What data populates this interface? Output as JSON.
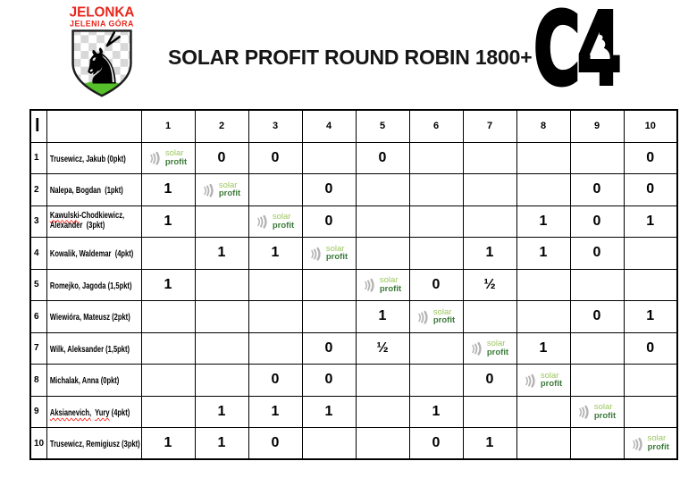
{
  "club_logo": {
    "name_line1": "JELONKA",
    "name_line2": "JELENIA GÓRA",
    "colors": {
      "red": "#e7261c",
      "shield_border": "#1c1c1c",
      "checker": "#d8d8d8",
      "grass": "#55c02a",
      "knight": "#000000"
    },
    "knight_icon": "♞"
  },
  "title": "SOLAR PROFIT ROUND ROBIN 1800+",
  "c4_logo": {
    "text": "C4",
    "piece_icon": "♟"
  },
  "table": {
    "corner_label": "l",
    "round_headers": [
      "1",
      "2",
      "3",
      "4",
      "5",
      "6",
      "7",
      "8",
      "9",
      "10"
    ],
    "solar_logo": {
      "word1": "solar",
      "word2": "profit",
      "word1_color": "#9cc75e",
      "word2_color": "#3b7a39",
      "icon_color": "#b3b3b3"
    },
    "spellcheck_underline_color": "#ff1f13",
    "players": [
      {
        "no": "1",
        "name_lines": [
          [
            {
              "t": "Trusewicz, Jakub (0pkt)"
            }
          ]
        ],
        "results": [
          "SP",
          "0",
          "0",
          "",
          "0",
          "",
          "",
          "",
          "",
          "0"
        ]
      },
      {
        "no": "2",
        "name_lines": [
          [
            {
              "t": "Nalepa, Bogdan  (1pkt)"
            }
          ]
        ],
        "results": [
          "1",
          "SP",
          "",
          "0",
          "",
          "",
          "",
          "",
          "0",
          "0"
        ]
      },
      {
        "no": "3",
        "name_lines": [
          [
            {
              "t": "Kawulski",
              "wavy": true
            },
            {
              "t": "-Chodkiewicz,"
            }
          ],
          [
            {
              "t": "Alexander  (3pkt)"
            }
          ]
        ],
        "results": [
          "1",
          "",
          "SP",
          "0",
          "",
          "",
          "",
          "1",
          "0",
          "1"
        ]
      },
      {
        "no": "4",
        "name_lines": [
          [
            {
              "t": "Kowalik, Waldemar  (4pkt)"
            }
          ]
        ],
        "results": [
          "",
          "1",
          "1",
          "SP",
          "",
          "",
          "1",
          "1",
          "0",
          ""
        ]
      },
      {
        "no": "5",
        "name_lines": [
          [
            {
              "t": "Romejko, Jagoda (1,5pkt)"
            }
          ]
        ],
        "results": [
          "1",
          "",
          "",
          "",
          "SP",
          "0",
          "½",
          "",
          "",
          ""
        ]
      },
      {
        "no": "6",
        "name_lines": [
          [
            {
              "t": "Wiewióra, Mateusz (2pkt)"
            }
          ]
        ],
        "results": [
          "",
          "",
          "",
          "",
          "1",
          "SP",
          "",
          "",
          "0",
          "1"
        ]
      },
      {
        "no": "7",
        "name_lines": [
          [
            {
              "t": "Wilk, Aleksander (1,5pkt)"
            }
          ]
        ],
        "results": [
          "",
          "",
          "",
          "0",
          "½",
          "",
          "SP",
          "1",
          "",
          "0"
        ]
      },
      {
        "no": "8",
        "name_lines": [
          [
            {
              "t": "Michalak, Anna (0pkt)"
            }
          ]
        ],
        "results": [
          "",
          "",
          "0",
          "0",
          "",
          "",
          "0",
          "SP",
          "",
          ""
        ]
      },
      {
        "no": "9",
        "name_lines": [
          [
            {
              "t": "Aksianevich,",
              "wavy": true
            },
            {
              "t": "  "
            },
            {
              "t": "Yury",
              "wavy": true
            },
            {
              "t": " (4pkt)"
            }
          ]
        ],
        "results": [
          "",
          "1",
          "1",
          "1",
          "",
          "1",
          "",
          "",
          "SP",
          ""
        ]
      },
      {
        "no": "10",
        "name_lines": [
          [
            {
              "t": "Trusewicz, Remigiusz (3pkt)"
            }
          ]
        ],
        "results": [
          "1",
          "1",
          "0",
          "",
          "",
          "0",
          "1",
          "",
          "",
          "SP"
        ]
      }
    ]
  }
}
